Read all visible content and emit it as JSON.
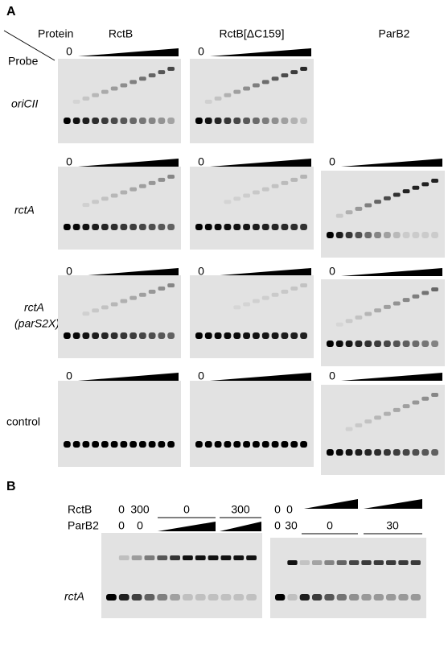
{
  "panel_a": {
    "label": "A",
    "protein_header": "Protein",
    "probe_header": "Probe",
    "proteins": [
      "RctB",
      "RctB[ΔC159]",
      "ParB2"
    ],
    "rows": [
      {
        "probe": [
          "oriCII"
        ],
        "zero_labels": [
          "0",
          "0"
        ]
      },
      {
        "probe": [
          "rctA"
        ],
        "zero_labels": [
          "0",
          "0",
          "0"
        ]
      },
      {
        "probe": [
          "rctA",
          "(parS2X)"
        ],
        "zero_labels": [
          "0",
          "0",
          "0"
        ]
      },
      {
        "probe": [
          "control"
        ],
        "zero_labels": [
          "0",
          "0",
          "0"
        ]
      }
    ]
  },
  "panel_b": {
    "label": "B",
    "row_labels": [
      "RctB",
      "ParB2"
    ],
    "probe": "rctA",
    "left": {
      "rctb": [
        "0",
        "300",
        "0",
        "300"
      ],
      "parb2": [
        "0",
        "0"
      ]
    },
    "right": {
      "rctb": [
        "0",
        "0"
      ],
      "parb2": [
        "0",
        "30",
        "0",
        "30"
      ]
    }
  }
}
